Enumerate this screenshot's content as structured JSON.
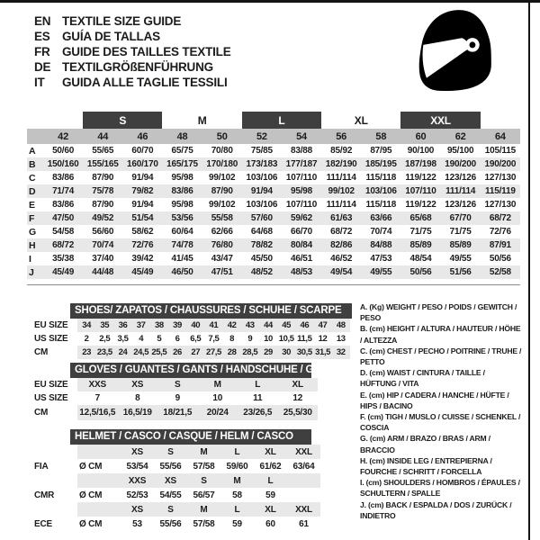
{
  "colors": {
    "dark_bar": "#3f3f3f",
    "numeric_band": "#c2c2c2",
    "row_stripe": "#e8e8e8",
    "top_rule": "#141414"
  },
  "icons": {
    "logo": "racing-helmet-icon"
  },
  "languages": [
    {
      "code": "EN",
      "title": "TEXTILE SIZE GUIDE"
    },
    {
      "code": "ES",
      "title": "GUÍA DE TALLAS"
    },
    {
      "code": "FR",
      "title": "GUIDE DES TAILLES TEXTILE"
    },
    {
      "code": "DE",
      "title": "TEXTILGRÖßENFÜHRUNG"
    },
    {
      "code": "IT",
      "title": "GUIDA ALLE TAGLIE TESSILI"
    }
  ],
  "main_table": {
    "size_groups": [
      {
        "label": "",
        "span": 1,
        "dark": false
      },
      {
        "label": "S",
        "span": 2,
        "dark": true
      },
      {
        "label": "M",
        "span": 2,
        "dark": false
      },
      {
        "label": "L",
        "span": 2,
        "dark": true
      },
      {
        "label": "XL",
        "span": 2,
        "dark": false
      },
      {
        "label": "XXL",
        "span": 2,
        "dark": true
      },
      {
        "label": "",
        "span": 1,
        "dark": false
      }
    ],
    "numeric_sizes": [
      "42",
      "44",
      "46",
      "48",
      "50",
      "52",
      "54",
      "56",
      "58",
      "60",
      "62",
      "64"
    ],
    "rows": [
      {
        "label": "A",
        "cells": [
          "50/60",
          "55/65",
          "60/70",
          "65/75",
          "70/80",
          "75/85",
          "83/88",
          "85/92",
          "87/95",
          "90/100",
          "95/100",
          "105/115"
        ]
      },
      {
        "label": "B",
        "cells": [
          "150/160",
          "155/165",
          "160/170",
          "165/175",
          "170/180",
          "173/183",
          "177/187",
          "182/190",
          "185/195",
          "187/198",
          "190/200",
          "190/200"
        ]
      },
      {
        "label": "C",
        "cells": [
          "83/86",
          "87/90",
          "91/94",
          "95/98",
          "99/102",
          "103/106",
          "107/110",
          "111/114",
          "115/118",
          "119/122",
          "123/126",
          "127/130"
        ]
      },
      {
        "label": "D",
        "cells": [
          "71/74",
          "75/78",
          "79/82",
          "83/86",
          "87/90",
          "91/94",
          "95/98",
          "99/102",
          "103/106",
          "107/110",
          "111/114",
          "115/119"
        ]
      },
      {
        "label": "E",
        "cells": [
          "83/86",
          "87/90",
          "91/94",
          "95/98",
          "99/102",
          "103/106",
          "107/110",
          "111/114",
          "115/118",
          "119/122",
          "123/126",
          "127/130"
        ]
      },
      {
        "label": "F",
        "cells": [
          "47/50",
          "49/52",
          "51/54",
          "53/56",
          "55/58",
          "57/60",
          "59/62",
          "61/63",
          "63/66",
          "65/68",
          "67/70",
          "68/72"
        ]
      },
      {
        "label": "G",
        "cells": [
          "54/58",
          "56/60",
          "58/62",
          "60/64",
          "62/66",
          "64/68",
          "66/70",
          "68/72",
          "70/74",
          "71/75",
          "71/75",
          "72/76"
        ]
      },
      {
        "label": "H",
        "cells": [
          "68/72",
          "70/74",
          "72/76",
          "74/78",
          "76/80",
          "78/82",
          "80/84",
          "82/86",
          "84/88",
          "85/89",
          "85/89",
          "87/91"
        ]
      },
      {
        "label": "I",
        "cells": [
          "35/38",
          "37/40",
          "39/42",
          "41/45",
          "43/47",
          "45/50",
          "46/51",
          "46/52",
          "47/53",
          "48/54",
          "49/55",
          "50/56"
        ]
      },
      {
        "label": "J",
        "cells": [
          "45/49",
          "44/48",
          "45/49",
          "46/50",
          "47/51",
          "48/52",
          "48/53",
          "49/54",
          "49/55",
          "50/56",
          "51/56",
          "52/58"
        ]
      }
    ]
  },
  "shoes_table": {
    "title": "SHOES/ ZAPATOS / CHAUSSURES / SCHUHE / SCARPE",
    "rows": [
      {
        "label": "EU SIZE",
        "stripe": true,
        "cells": [
          "34",
          "35",
          "36",
          "37",
          "38",
          "39",
          "40",
          "41",
          "42",
          "43",
          "44",
          "45",
          "46",
          "47",
          "48"
        ]
      },
      {
        "label": "US SIZE",
        "stripe": false,
        "cells": [
          "2",
          "2,5",
          "3,5",
          "4",
          "5",
          "6",
          "6,5",
          "7,5",
          "8",
          "9",
          "10",
          "10,5",
          "11,5",
          "12",
          "13"
        ]
      },
      {
        "label": "CM",
        "stripe": true,
        "cells": [
          "23",
          "23,5",
          "24",
          "24,5",
          "25,5",
          "26",
          "27",
          "27,5",
          "28",
          "28,5",
          "29",
          "30",
          "30,5",
          "31,5",
          "32"
        ]
      }
    ]
  },
  "gloves_table": {
    "title": "GLOVES / GUANTES / GANTS / HANDSCHUHE / GUANTI",
    "rows": [
      {
        "label": "EU SIZE",
        "stripe": true,
        "cells": [
          "XXS",
          "XS",
          "S",
          "M",
          "L",
          "XL"
        ]
      },
      {
        "label": "US SIZE",
        "stripe": false,
        "cells": [
          "7",
          "8",
          "9",
          "10",
          "11",
          "12"
        ]
      },
      {
        "label": "CM",
        "stripe": true,
        "cells": [
          "12,5/16,5",
          "16,5/19",
          "18/21,5",
          "20/24",
          "23/26,5",
          "25,5/30"
        ]
      }
    ]
  },
  "helmet_table": {
    "title": "HELMET / CASCO / CASQUE / HELM / CASCO",
    "rows": [
      {
        "label": "",
        "stripe": true,
        "cells": [
          "",
          "XS",
          "S",
          "M",
          "L",
          "XL",
          "XXL"
        ]
      },
      {
        "label": "FIA",
        "stripe": false,
        "cells": [
          "Ø CM",
          "53/54",
          "55/56",
          "57/58",
          "59/60",
          "61/62",
          "63/64"
        ]
      },
      {
        "label": "",
        "stripe": true,
        "cells": [
          "",
          "XXS",
          "XS",
          "S",
          "M",
          "L",
          ""
        ]
      },
      {
        "label": "CMR",
        "stripe": false,
        "cells": [
          "Ø CM",
          "52/53",
          "54/55",
          "56/57",
          "58",
          "59",
          ""
        ]
      },
      {
        "label": "",
        "stripe": true,
        "cells": [
          "",
          "XS",
          "S",
          "M",
          "L",
          "XL",
          "XXL"
        ]
      },
      {
        "label": "ECE",
        "stripe": false,
        "cells": [
          "Ø CM",
          "53",
          "55/56",
          "57/58",
          "59",
          "60",
          "61"
        ]
      }
    ]
  },
  "legend": {
    "items": [
      "A. (Kg) WEIGHT / PESO / POIDS / GEWITCH / PESO",
      "B. (cm) HEIGHT / ALTURA / HAUTEUR / HÖHE / ALTEZZA",
      "C. (cm) CHEST / PECHO / POITRINE / TRUHE / PETTO",
      "D. (cm) WAIST / CINTURA / TAILLE / HÜFTUNG / VITA",
      "E. (cm) HIP / CADERA / HANCHE / HÜFTE / HIPS / BACINO",
      "F. (cm) TIGH / MUSLO / CUISSE / SCHENKEL / COSCIA",
      "G. (cm) ARM / BRAZO / BRAS / ARM / BRACCIO",
      "H. (cm) INSIDE LEG / ENTREPIERNA / FOURCHE / SCHRITT / FORCELLA",
      "I. (cm) SHOULDERS / HOMBROS / ÉPAULES / SCHULTERN / SPALLE",
      "J. (cm) BACK / ESPALDA / DOS / ZURÜCK / INDIETRO"
    ]
  }
}
